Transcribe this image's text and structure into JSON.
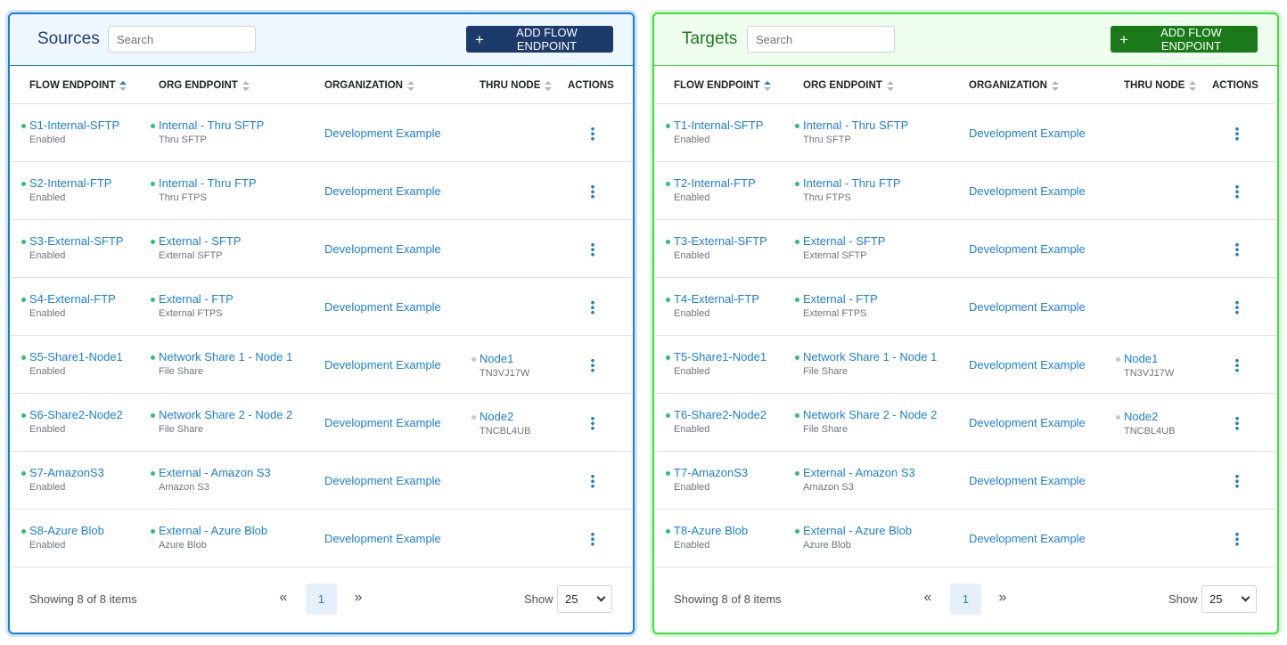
{
  "colors": {
    "link": "#1a7fd4",
    "status_enabled": "#2fbf6f",
    "status_node": "#c2c7cc",
    "sources_button": "#1c3b6b",
    "targets_button": "#1a7a1a"
  },
  "panels": [
    {
      "key": "sources",
      "title": "Sources",
      "search_placeholder": "Search",
      "add_label": "ADD FLOW ENDPOINT",
      "columns": {
        "flow_endpoint": "FLOW ENDPOINT",
        "org_endpoint": "ORG ENDPOINT",
        "organization": "ORGANIZATION",
        "thru_node": "THRU NODE",
        "actions": "ACTIONS"
      },
      "rows": [
        {
          "name": "S1-Internal-SFTP",
          "status": "Enabled",
          "org_endpoint": "Internal - Thru SFTP",
          "org_endpoint_type": "Thru SFTP",
          "organization": "Development Example",
          "node": "",
          "node_id": ""
        },
        {
          "name": "S2-Internal-FTP",
          "status": "Enabled",
          "org_endpoint": "Internal - Thru FTP",
          "org_endpoint_type": "Thru FTPS",
          "organization": "Development Example",
          "node": "",
          "node_id": ""
        },
        {
          "name": "S3-External-SFTP",
          "status": "Enabled",
          "org_endpoint": "External - SFTP",
          "org_endpoint_type": "External SFTP",
          "organization": "Development Example",
          "node": "",
          "node_id": ""
        },
        {
          "name": "S4-External-FTP",
          "status": "Enabled",
          "org_endpoint": "External - FTP",
          "org_endpoint_type": "External FTPS",
          "organization": "Development Example",
          "node": "",
          "node_id": ""
        },
        {
          "name": "S5-Share1-Node1",
          "status": "Enabled",
          "org_endpoint": "Network Share 1 - Node 1",
          "org_endpoint_type": "File Share",
          "organization": "Development Example",
          "node": "Node1",
          "node_id": "TN3VJ17W"
        },
        {
          "name": "S6-Share2-Node2",
          "status": "Enabled",
          "org_endpoint": "Network Share 2 - Node 2",
          "org_endpoint_type": "File Share",
          "organization": "Development Example",
          "node": "Node2",
          "node_id": "TNCBL4UB"
        },
        {
          "name": "S7-AmazonS3",
          "status": "Enabled",
          "org_endpoint": "External - Amazon S3",
          "org_endpoint_type": "Amazon S3",
          "organization": "Development Example",
          "node": "",
          "node_id": ""
        },
        {
          "name": "S8-Azure Blob",
          "status": "Enabled",
          "org_endpoint": "External - Azure Blob",
          "org_endpoint_type": "Azure Blob",
          "organization": "Development Example",
          "node": "",
          "node_id": ""
        }
      ],
      "footer": {
        "showing": "Showing 8 of 8 items",
        "page": "1",
        "show_label": "Show",
        "page_size": "25",
        "prev": "«",
        "next": "»"
      }
    },
    {
      "key": "targets",
      "title": "Targets",
      "search_placeholder": "Search",
      "add_label": "ADD FLOW ENDPOINT",
      "columns": {
        "flow_endpoint": "FLOW ENDPOINT",
        "org_endpoint": "ORG ENDPOINT",
        "organization": "ORGANIZATION",
        "thru_node": "THRU NODE",
        "actions": "ACTIONS"
      },
      "rows": [
        {
          "name": "T1-Internal-SFTP",
          "status": "Enabled",
          "org_endpoint": "Internal - Thru SFTP",
          "org_endpoint_type": "Thru SFTP",
          "organization": "Development Example",
          "node": "",
          "node_id": ""
        },
        {
          "name": "T2-Internal-FTP",
          "status": "Enabled",
          "org_endpoint": "Internal - Thru FTP",
          "org_endpoint_type": "Thru FTPS",
          "organization": "Development Example",
          "node": "",
          "node_id": ""
        },
        {
          "name": "T3-External-SFTP",
          "status": "Enabled",
          "org_endpoint": "External - SFTP",
          "org_endpoint_type": "External SFTP",
          "organization": "Development Example",
          "node": "",
          "node_id": ""
        },
        {
          "name": "T4-External-FTP",
          "status": "Enabled",
          "org_endpoint": "External - FTP",
          "org_endpoint_type": "External FTPS",
          "organization": "Development Example",
          "node": "",
          "node_id": ""
        },
        {
          "name": "T5-Share1-Node1",
          "status": "Enabled",
          "org_endpoint": "Network Share 1 - Node 1",
          "org_endpoint_type": "File Share",
          "organization": "Development Example",
          "node": "Node1",
          "node_id": "TN3VJ17W"
        },
        {
          "name": "T6-Share2-Node2",
          "status": "Enabled",
          "org_endpoint": "Network Share 2 - Node 2",
          "org_endpoint_type": "File Share",
          "organization": "Development Example",
          "node": "Node2",
          "node_id": "TNCBL4UB"
        },
        {
          "name": "T7-AmazonS3",
          "status": "Enabled",
          "org_endpoint": "External - Amazon S3",
          "org_endpoint_type": "Amazon S3",
          "organization": "Development Example",
          "node": "",
          "node_id": ""
        },
        {
          "name": "T8-Azure Blob",
          "status": "Enabled",
          "org_endpoint": "External - Azure Blob",
          "org_endpoint_type": "Azure Blob",
          "organization": "Development Example",
          "node": "",
          "node_id": ""
        }
      ],
      "footer": {
        "showing": "Showing 8 of 8 items",
        "page": "1",
        "show_label": "Show",
        "page_size": "25",
        "prev": "«",
        "next": "»"
      }
    }
  ]
}
